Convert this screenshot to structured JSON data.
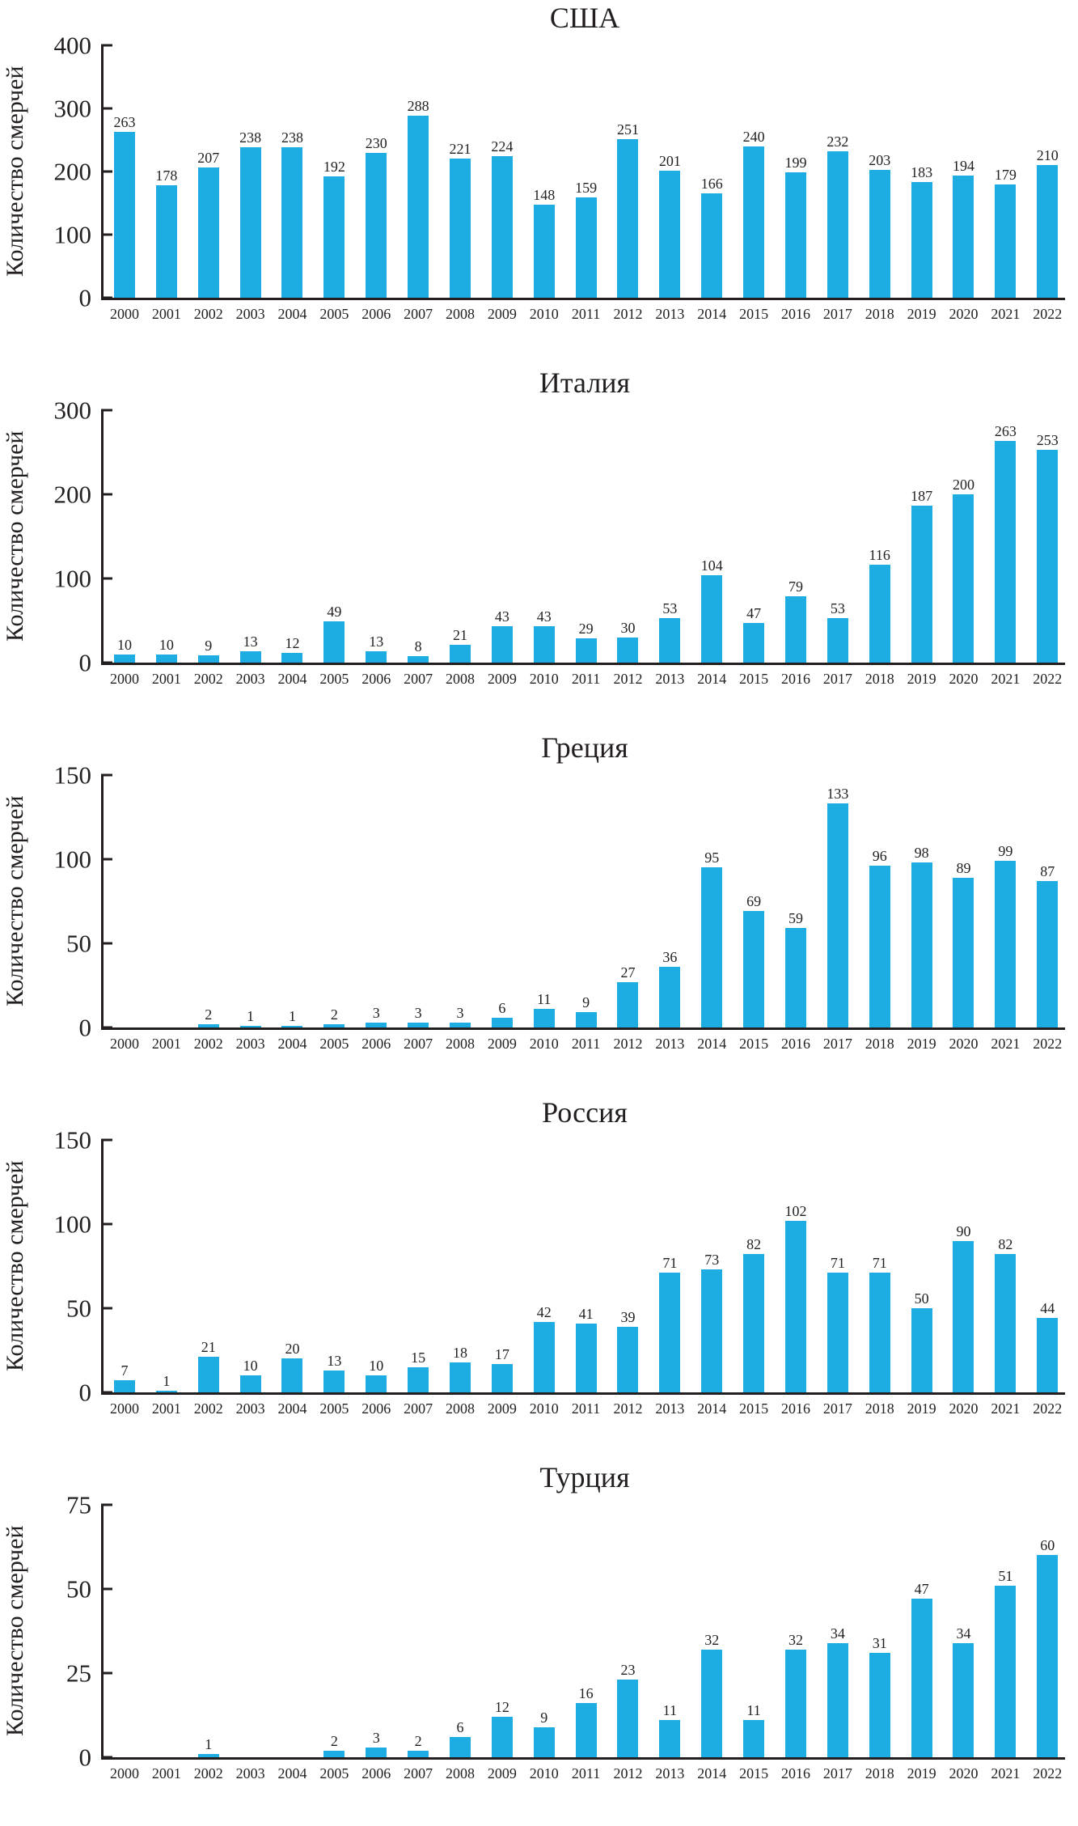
{
  "page": {
    "background": "#ffffff",
    "text_color": "#231f20",
    "bar_color": "#1eade2",
    "axis_color": "#231f20"
  },
  "chart_data": [
    {
      "type": "bar",
      "title": "США",
      "ylabel": "Количество смерчей",
      "xlabel": "",
      "ylim": [
        0,
        400
      ],
      "yticks": [
        0,
        100,
        200,
        300,
        400
      ],
      "grid": false,
      "legend": "none",
      "categories": [
        "2000",
        "2001",
        "2002",
        "2003",
        "2004",
        "2005",
        "2006",
        "2007",
        "2008",
        "2009",
        "2010",
        "2011",
        "2012",
        "2013",
        "2014",
        "2015",
        "2016",
        "2017",
        "2018",
        "2019",
        "2020",
        "2021",
        "2022"
      ],
      "values": [
        263,
        178,
        207,
        238,
        238,
        192,
        230,
        288,
        221,
        224,
        148,
        159,
        251,
        201,
        166,
        240,
        199,
        232,
        203,
        183,
        194,
        179,
        210
      ]
    },
    {
      "type": "bar",
      "title": "Италия",
      "ylabel": "Количество смерчей",
      "xlabel": "",
      "ylim": [
        0,
        300
      ],
      "yticks": [
        0,
        100,
        200,
        300
      ],
      "grid": false,
      "legend": "none",
      "categories": [
        "2000",
        "2001",
        "2002",
        "2003",
        "2004",
        "2005",
        "2006",
        "2007",
        "2008",
        "2009",
        "2010",
        "2011",
        "2012",
        "2013",
        "2014",
        "2015",
        "2016",
        "2017",
        "2018",
        "2019",
        "2020",
        "2021",
        "2022"
      ],
      "values": [
        10,
        10,
        9,
        13,
        12,
        49,
        13,
        8,
        21,
        43,
        43,
        29,
        30,
        53,
        104,
        47,
        79,
        53,
        116,
        187,
        200,
        263,
        253
      ]
    },
    {
      "type": "bar",
      "title": "Греция",
      "ylabel": "Количество смерчей",
      "xlabel": "",
      "ylim": [
        0,
        150
      ],
      "yticks": [
        0,
        50,
        100,
        150
      ],
      "grid": false,
      "legend": "none",
      "categories": [
        "2000",
        "2001",
        "2002",
        "2003",
        "2004",
        "2005",
        "2006",
        "2007",
        "2008",
        "2009",
        "2010",
        "2011",
        "2012",
        "2013",
        "2014",
        "2015",
        "2016",
        "2017",
        "2018",
        "2019",
        "2020",
        "2021",
        "2022"
      ],
      "values": [
        null,
        null,
        2,
        1,
        1,
        2,
        3,
        3,
        3,
        6,
        11,
        9,
        27,
        36,
        95,
        69,
        59,
        133,
        96,
        98,
        89,
        99,
        87
      ]
    },
    {
      "type": "bar",
      "title": "Россия",
      "ylabel": "Количество смерчей",
      "xlabel": "",
      "ylim": [
        0,
        150
      ],
      "yticks": [
        0,
        50,
        100,
        150
      ],
      "grid": false,
      "legend": "none",
      "categories": [
        "2000",
        "2001",
        "2002",
        "2003",
        "2004",
        "2005",
        "2006",
        "2007",
        "2008",
        "2009",
        "2010",
        "2011",
        "2012",
        "2013",
        "2014",
        "2015",
        "2016",
        "2017",
        "2018",
        "2019",
        "2020",
        "2021",
        "2022"
      ],
      "values": [
        7,
        1,
        21,
        10,
        20,
        13,
        10,
        15,
        18,
        17,
        42,
        41,
        39,
        71,
        73,
        82,
        102,
        71,
        71,
        50,
        90,
        82,
        44
      ]
    },
    {
      "type": "bar",
      "title": "Турция",
      "ylabel": "Количество смерчей",
      "xlabel": "",
      "ylim": [
        0,
        75
      ],
      "yticks": [
        0,
        25,
        50,
        75
      ],
      "grid": false,
      "legend": "none",
      "categories": [
        "2000",
        "2001",
        "2002",
        "2003",
        "2004",
        "2005",
        "2006",
        "2007",
        "2008",
        "2009",
        "2010",
        "2011",
        "2012",
        "2013",
        "2014",
        "2015",
        "2016",
        "2017",
        "2018",
        "2019",
        "2020",
        "2021",
        "2022"
      ],
      "values": [
        null,
        null,
        1,
        null,
        null,
        2,
        3,
        2,
        6,
        12,
        9,
        16,
        23,
        11,
        32,
        11,
        32,
        34,
        31,
        47,
        34,
        51,
        60
      ]
    }
  ]
}
